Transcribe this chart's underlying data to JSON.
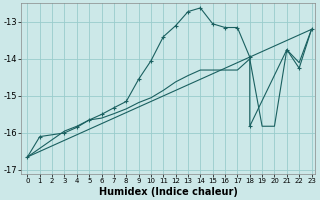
{
  "xlabel": "Humidex (Indice chaleur)",
  "bg_color": "#cce8e8",
  "line_color": "#1a6060",
  "grid_color": "#99cccc",
  "xlim": [
    -0.5,
    23.3
  ],
  "ylim": [
    -17.1,
    -12.5
  ],
  "yticks": [
    -17,
    -16,
    -15,
    -14,
    -13
  ],
  "xticks": [
    0,
    1,
    2,
    3,
    4,
    5,
    6,
    7,
    8,
    9,
    10,
    11,
    12,
    13,
    14,
    15,
    16,
    17,
    18,
    19,
    20,
    21,
    22,
    23
  ],
  "curve1_x": [
    0,
    1,
    3,
    4,
    5,
    6,
    7,
    8,
    9,
    10,
    11,
    12,
    13,
    14,
    15,
    16,
    17,
    18,
    18,
    21,
    22,
    23
  ],
  "curve1_y": [
    -16.65,
    -16.1,
    -16.0,
    -15.85,
    -15.65,
    -15.5,
    -15.32,
    -15.15,
    -14.55,
    -14.05,
    -13.4,
    -13.1,
    -12.72,
    -12.62,
    -13.05,
    -13.15,
    -13.15,
    -13.95,
    -15.82,
    -13.75,
    -14.25,
    -13.2
  ],
  "curve2_x": [
    0,
    3,
    4,
    5,
    6,
    7,
    8,
    9,
    10,
    11,
    12,
    13,
    14,
    15,
    16,
    17,
    18,
    19,
    20,
    21,
    22,
    23
  ],
  "curve2_y": [
    -16.65,
    -15.95,
    -15.82,
    -15.65,
    -15.6,
    -15.48,
    -15.35,
    -15.18,
    -15.05,
    -14.85,
    -14.62,
    -14.45,
    -14.3,
    -14.3,
    -14.3,
    -14.3,
    -14.0,
    -15.82,
    -15.82,
    -13.75,
    -14.1,
    -13.2
  ],
  "line_x": [
    0,
    23
  ],
  "line_y": [
    -16.65,
    -13.2
  ],
  "xlabel_fontsize": 7,
  "xlabel_fontweight": "bold",
  "ytick_fontsize": 6,
  "xtick_fontsize": 5
}
